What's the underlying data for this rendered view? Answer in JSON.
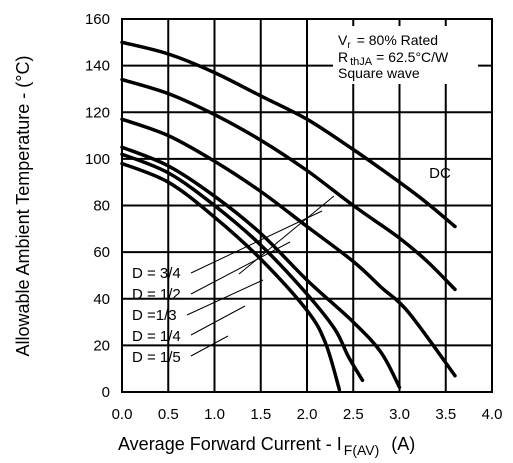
{
  "chart_data": {
    "type": "line",
    "xlabel": {
      "main": "Average Forward Current - I",
      "sub": "F(AV)",
      "unit": "(A)"
    },
    "ylabel": "Allowable Ambient Temperature - (°C)",
    "xlim": [
      0,
      4.0
    ],
    "ylim": [
      0,
      160
    ],
    "x_ticks": [
      "0.0",
      "0.5",
      "1.0",
      "1.5",
      "2.0",
      "2.5",
      "3.0",
      "3.5",
      "4.0"
    ],
    "y_ticks": [
      "0",
      "20",
      "40",
      "60",
      "80",
      "100",
      "120",
      "140",
      "160"
    ],
    "grid": true,
    "conditions": {
      "vr_sym": "V",
      "vr_sub": "r",
      "vr_text": "= 80% Rated",
      "rth_sym": "R",
      "rth_sub": "thJA",
      "rth_text": "= 62.5°C/W",
      "wave": "Square wave"
    },
    "series": [
      {
        "name": "DC",
        "x": [
          0.0,
          0.5,
          1.0,
          1.5,
          2.0,
          2.5,
          3.0,
          3.3,
          3.6
        ],
        "y": [
          150,
          145,
          137,
          127,
          117,
          104,
          90,
          81,
          71
        ]
      },
      {
        "name": "D = 3/4",
        "x": [
          0.0,
          0.5,
          1.0,
          1.5,
          2.0,
          2.5,
          3.0,
          3.3,
          3.6
        ],
        "y": [
          134,
          128,
          119,
          108,
          95,
          80,
          66,
          56,
          44
        ]
      },
      {
        "name": "D = 1/2",
        "x": [
          0.0,
          0.5,
          1.0,
          1.5,
          2.0,
          2.5,
          2.8,
          3.1,
          3.6
        ],
        "y": [
          117,
          110,
          99,
          86,
          71,
          56,
          45,
          34,
          7
        ]
      },
      {
        "name": "D =1/3",
        "x": [
          0.0,
          0.5,
          1.0,
          1.5,
          2.0,
          2.5,
          2.8,
          3.0
        ],
        "y": [
          105,
          97,
          84,
          68,
          48,
          30,
          17,
          2
        ]
      },
      {
        "name": "D = 1/4",
        "x": [
          0.0,
          0.5,
          1.0,
          1.5,
          2.0,
          2.3,
          2.45,
          2.6
        ],
        "y": [
          102,
          94,
          80,
          63,
          42,
          27,
          15,
          5
        ]
      },
      {
        "name": "D = 1/5",
        "x": [
          0.0,
          0.5,
          1.0,
          1.5,
          2.0,
          2.2,
          2.35
        ],
        "y": [
          98,
          90,
          75,
          57,
          35,
          21,
          1
        ]
      }
    ],
    "annotations": [
      {
        "label": "DC",
        "series": "DC"
      },
      {
        "label": "D = 3/4",
        "series": "D = 3/4"
      },
      {
        "label": "D = 1/2",
        "series": "D = 1/2"
      },
      {
        "label": "D =1/3",
        "series": "D =1/3"
      },
      {
        "label": "D = 1/4",
        "series": "D = 1/4"
      },
      {
        "label": "D = 1/5",
        "series": "D = 1/5"
      }
    ]
  }
}
